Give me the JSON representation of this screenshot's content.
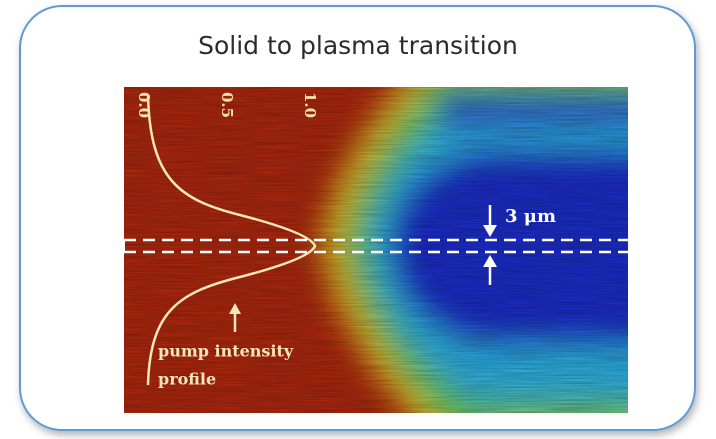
{
  "title": "Solid to plasma transition",
  "figure": {
    "axis_labels": [
      "0.0",
      "0.5",
      "1.0"
    ],
    "scale_label": "3 μm",
    "annotation": [
      "pump intensity",
      "profile"
    ]
  }
}
